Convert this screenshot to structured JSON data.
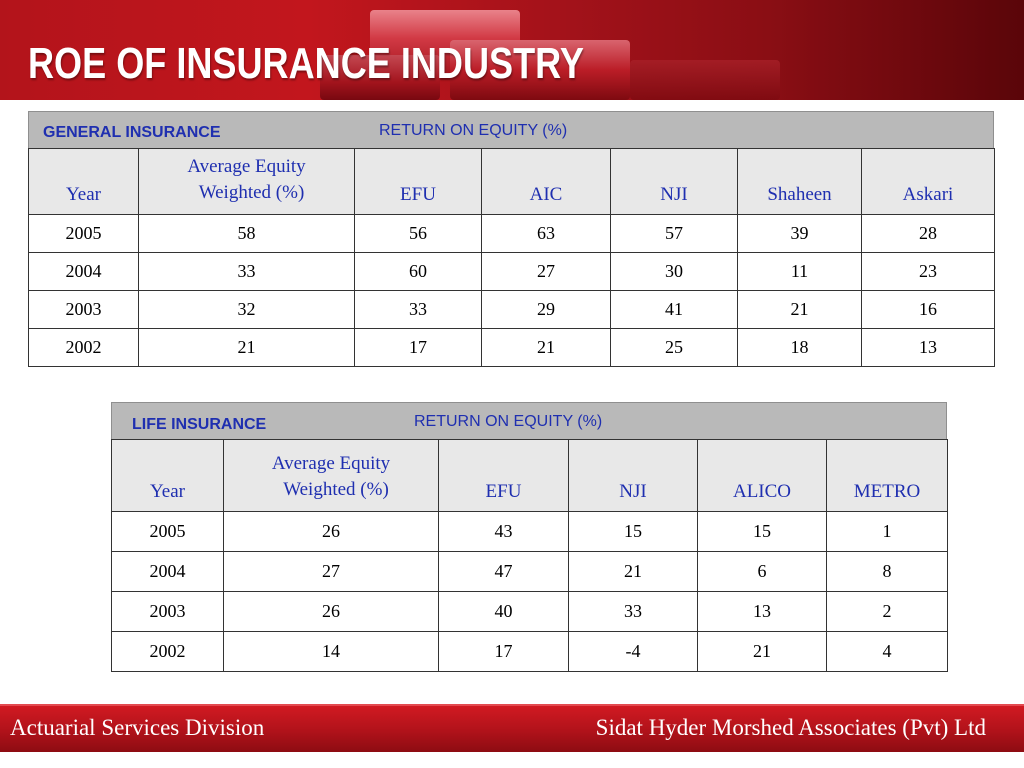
{
  "title": "ROE OF INSURANCE INDUSTRY",
  "general": {
    "section_label": "GENERAL INSURANCE",
    "roe_label": "RETURN ON EQUITY (%)",
    "headers": {
      "year": "Year",
      "avg_line1": "Average Equity",
      "avg_line2": "Weighted (%)",
      "c1": "EFU",
      "c2": "AIC",
      "c3": "NJI",
      "c4": "Shaheen",
      "c5": "Askari"
    },
    "rows": [
      [
        "2005",
        "58",
        "56",
        "63",
        "57",
        "39",
        "28"
      ],
      [
        "2004",
        "33",
        "60",
        "27",
        "30",
        "11",
        "23"
      ],
      [
        "2003",
        "32",
        "33",
        "29",
        "41",
        "21",
        "16"
      ],
      [
        "2002",
        "21",
        "17",
        "21",
        "25",
        "18",
        "13"
      ]
    ]
  },
  "life": {
    "section_label": "LIFE INSURANCE",
    "roe_label": "RETURN ON EQUITY (%)",
    "headers": {
      "year": "Year",
      "avg_line1": "Average Equity",
      "avg_line2": "Weighted (%)",
      "c1": "EFU",
      "c2": "NJI",
      "c3": "ALICO",
      "c4": "METRO"
    },
    "rows": [
      [
        "2005",
        "26",
        "43",
        "15",
        "15",
        "1"
      ],
      [
        "2004",
        "27",
        "47",
        "21",
        "6",
        "8"
      ],
      [
        "2003",
        "26",
        "40",
        "33",
        "13",
        "2"
      ],
      [
        "2002",
        "14",
        "17",
        "-4",
        "21",
        "4"
      ]
    ]
  },
  "footer": {
    "left": "Actuarial Services Division",
    "right": "Sidat Hyder Morshed Associates (Pvt) Ltd"
  },
  "colors": {
    "header_red": "#b3141b",
    "label_blue": "#1f2fb0",
    "band_gray": "#b9b9b9"
  }
}
